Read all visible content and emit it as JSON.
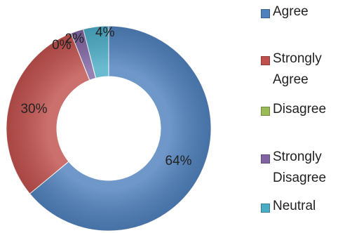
{
  "chart_data": {
    "type": "pie",
    "variant": "donut",
    "categories": [
      "Agree",
      "Strongly Agree",
      "Disagree",
      "Strongly Disagree",
      "Neutral"
    ],
    "values": [
      64,
      30,
      0,
      2,
      4
    ],
    "data_labels": [
      "64%",
      "30%",
      "0%",
      "2%",
      "4%"
    ],
    "colors": [
      "#4f81bd",
      "#c0504d",
      "#9bbb59",
      "#8064a2",
      "#4bacc6"
    ],
    "legend_placement": "right"
  }
}
